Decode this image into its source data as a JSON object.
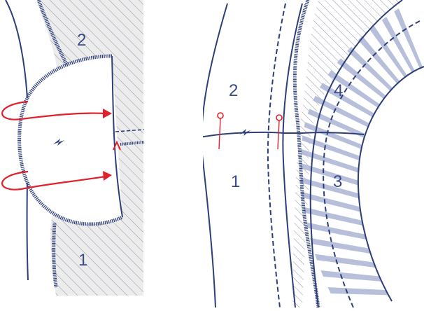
{
  "colors": {
    "line": "#2e3f78",
    "hatch_fill": "#e9e9e9",
    "hatch_stroke": "#8f93a6",
    "stripe": "#aab4d4",
    "arrow": "#e0212b",
    "label": "#3a4a86"
  },
  "left_panel": {
    "labels": {
      "upper": "2",
      "lower": "1"
    },
    "arrow_count": 2,
    "icons": [
      "pressing-bolt-icon",
      "mark-arrow-icon"
    ]
  },
  "right_panel": {
    "labels": {
      "upper_left": "2",
      "lower_left": "1",
      "band_upper": "4",
      "band_lower": "3"
    },
    "pins": 2,
    "icons": [
      "pressing-bolt-icon",
      "pin-icon"
    ]
  }
}
